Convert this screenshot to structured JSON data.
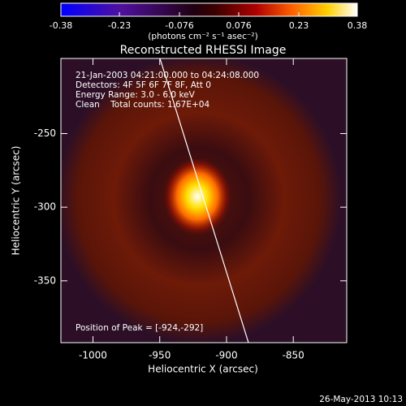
{
  "chart_data": {
    "type": "image",
    "title": "Reconstructed RHESSI Image",
    "colorbar_label": "(photons cm⁻² s⁻¹ asec⁻²)",
    "clim": [
      -0.38,
      0.38
    ],
    "colorbar_ticks": [
      -0.38,
      -0.23,
      -0.076,
      0.076,
      0.23,
      0.38
    ],
    "xlabel": "Heliocentric X (arcsec)",
    "ylabel": "Heliocentric Y (arcsec)",
    "xlim": [
      -1024,
      -810
    ],
    "xticks": [
      -1000,
      -950,
      -900,
      -850
    ],
    "ylim": [
      -392,
      -199
    ],
    "yticks": [
      -250,
      -300,
      -350
    ],
    "annotations": [
      "21-Jan-2003 04:21:00.000 to 04:24:08.000",
      "Detectors: 4F 5F 6F 7F 8F, Att 0",
      "Energy Range: 3.0 - 6.0 keV",
      "Clean    Total counts: 1.67E+04"
    ],
    "peak_label": "Position of Peak = [-924,-292]",
    "footer": "26-May-2013 10:13"
  }
}
